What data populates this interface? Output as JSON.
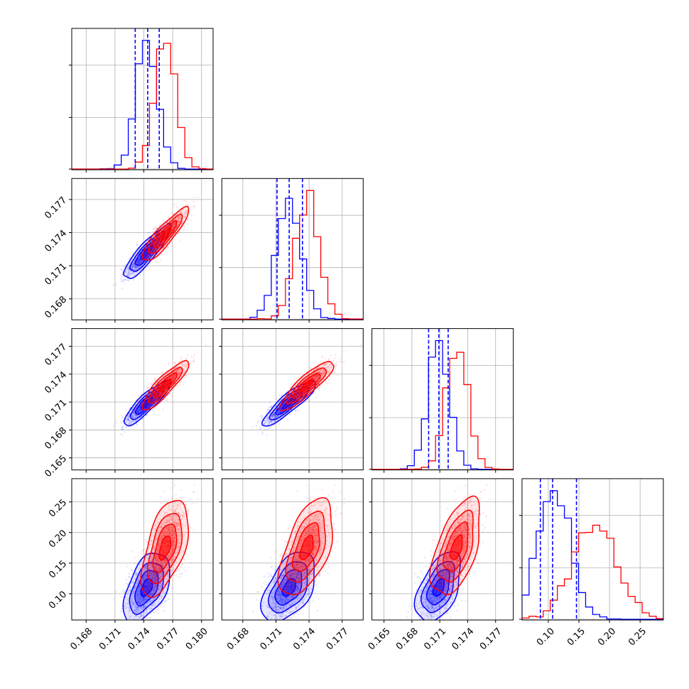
{
  "chart_data": {
    "type": "corner",
    "colors": {
      "blue": "#0000ff",
      "red": "#ff0000"
    },
    "series": [
      {
        "color": "#0000ff",
        "role": "blue-posterior"
      },
      {
        "color": "#ff0000",
        "role": "red-posterior"
      }
    ],
    "quantile_lines": {
      "style": "dashed",
      "color": "#0000ff",
      "params": [
        [
          0.1731,
          0.1744,
          0.1756
        ],
        [
          0.1711,
          0.1722,
          0.1734
        ],
        [
          0.1698,
          0.1709,
          0.1719
        ],
        [
          0.087,
          0.107,
          0.146
        ]
      ]
    },
    "params": [
      {
        "range": [
          0.1665,
          0.1812
        ],
        "xticks": [
          0.168,
          0.171,
          0.174,
          0.177,
          0.18
        ],
        "xtick_labels": [
          "0.168",
          "0.171",
          "0.174",
          "0.177",
          "0.180"
        ],
        "blue": {
          "mean": 0.1743,
          "sd": 0.0011
        },
        "red": {
          "mean": 0.1762,
          "sd": 0.0011
        }
      },
      {
        "range": [
          0.1661,
          0.1789
        ],
        "xticks": [
          0.168,
          0.171,
          0.174,
          0.177
        ],
        "xtick_labels": [
          "0.168",
          "0.171",
          "0.174",
          "0.177"
        ],
        "yticks": [
          0.168,
          0.171,
          0.174,
          0.177
        ],
        "ytick_labels": [
          "0.168",
          "0.171",
          "0.174",
          "0.177"
        ],
        "blue": {
          "mean": 0.1722,
          "sd": 0.0011
        },
        "red": {
          "mean": 0.1738,
          "sd": 0.0011
        }
      },
      {
        "range": [
          0.1637,
          0.1789
        ],
        "xticks": [
          0.165,
          0.168,
          0.171,
          0.174,
          0.177
        ],
        "xtick_labels": [
          "0.165",
          "0.168",
          "0.171",
          "0.174",
          "0.177"
        ],
        "yticks": [
          0.165,
          0.168,
          0.171,
          0.174,
          0.177
        ],
        "ytick_labels": [
          "0.165",
          "0.168",
          "0.171",
          "0.174",
          "0.177"
        ],
        "blue": {
          "mean": 0.1709,
          "sd": 0.0011
        },
        "red": {
          "mean": 0.1728,
          "sd": 0.0012
        }
      },
      {
        "range": [
          0.057,
          0.288
        ],
        "xticks": [
          0.1,
          0.15,
          0.2,
          0.25
        ],
        "xtick_labels": [
          "0.10",
          "0.15",
          "0.20",
          "0.25"
        ],
        "yticks": [
          0.1,
          0.15,
          0.2,
          0.25
        ],
        "ytick_labels": [
          "0.10",
          "0.15",
          "0.20",
          "0.25"
        ],
        "blue": {
          "mean": 0.11,
          "sd": 0.026
        },
        "red": {
          "mean": 0.175,
          "sd": 0.036
        }
      }
    ],
    "correlations": {
      "blue": [
        [
          1,
          0.88,
          0.88,
          0.5
        ],
        [
          0.88,
          1,
          0.88,
          0.5
        ],
        [
          0.88,
          0.88,
          1,
          0.5
        ],
        [
          0.5,
          0.5,
          0.5,
          1
        ]
      ],
      "red": [
        [
          1,
          0.88,
          0.88,
          0.55
        ],
        [
          0.88,
          1,
          0.88,
          0.55
        ],
        [
          0.88,
          0.88,
          1,
          0.55
        ],
        [
          0.55,
          0.55,
          0.55,
          1
        ]
      ]
    },
    "histogram_bins": 20,
    "hist_yticks_count": 3,
    "grid": true
  }
}
